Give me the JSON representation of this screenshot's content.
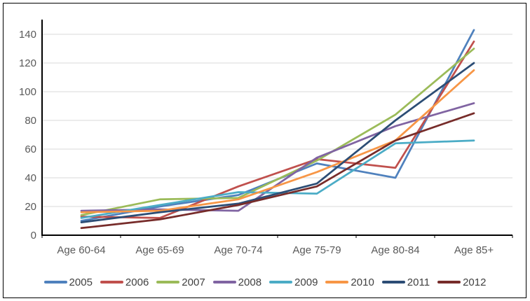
{
  "window": {
    "type": "static-chart-screenshot",
    "border_color": "#000000",
    "background": "#ffffff"
  },
  "chart_data": {
    "type": "line",
    "title": "",
    "xlabel": "",
    "ylabel": "",
    "categories": [
      "Age 60-64",
      "Age 65-69",
      "Age 70-74",
      "Age 75-79",
      "Age 80-84",
      "Age 85+"
    ],
    "series": [
      {
        "name": "2005",
        "color": "#4F81BD",
        "values": [
          10,
          20,
          28,
          50,
          40,
          143
        ]
      },
      {
        "name": "2006",
        "color": "#C0504D",
        "values": [
          13,
          12,
          34,
          53,
          47,
          135
        ]
      },
      {
        "name": "2007",
        "color": "#9BBB59",
        "values": [
          14,
          25,
          26,
          52,
          84,
          130
        ]
      },
      {
        "name": "2008",
        "color": "#8064A2",
        "values": [
          17,
          18,
          17,
          54,
          76,
          92
        ]
      },
      {
        "name": "2009",
        "color": "#4BACC6",
        "values": [
          12,
          21,
          30,
          29,
          64,
          66
        ]
      },
      {
        "name": "2010",
        "color": "#F79646",
        "values": [
          16,
          17,
          25,
          44,
          66,
          115
        ]
      },
      {
        "name": "2011",
        "color": "#2C4D75",
        "values": [
          9,
          16,
          22,
          36,
          80,
          120
        ]
      },
      {
        "name": "2012",
        "color": "#772C2A",
        "values": [
          5,
          11,
          21,
          34,
          66,
          85
        ]
      }
    ],
    "ylim": [
      0,
      140
    ],
    "yticks": [
      0,
      20,
      40,
      60,
      80,
      100,
      120,
      140
    ],
    "grid": true,
    "legend_position": "bottom",
    "axis_color": "#000000",
    "gridline_color": "#D9D9D9",
    "tick_label_color": "#595959",
    "legend_label_color": "#404040"
  }
}
